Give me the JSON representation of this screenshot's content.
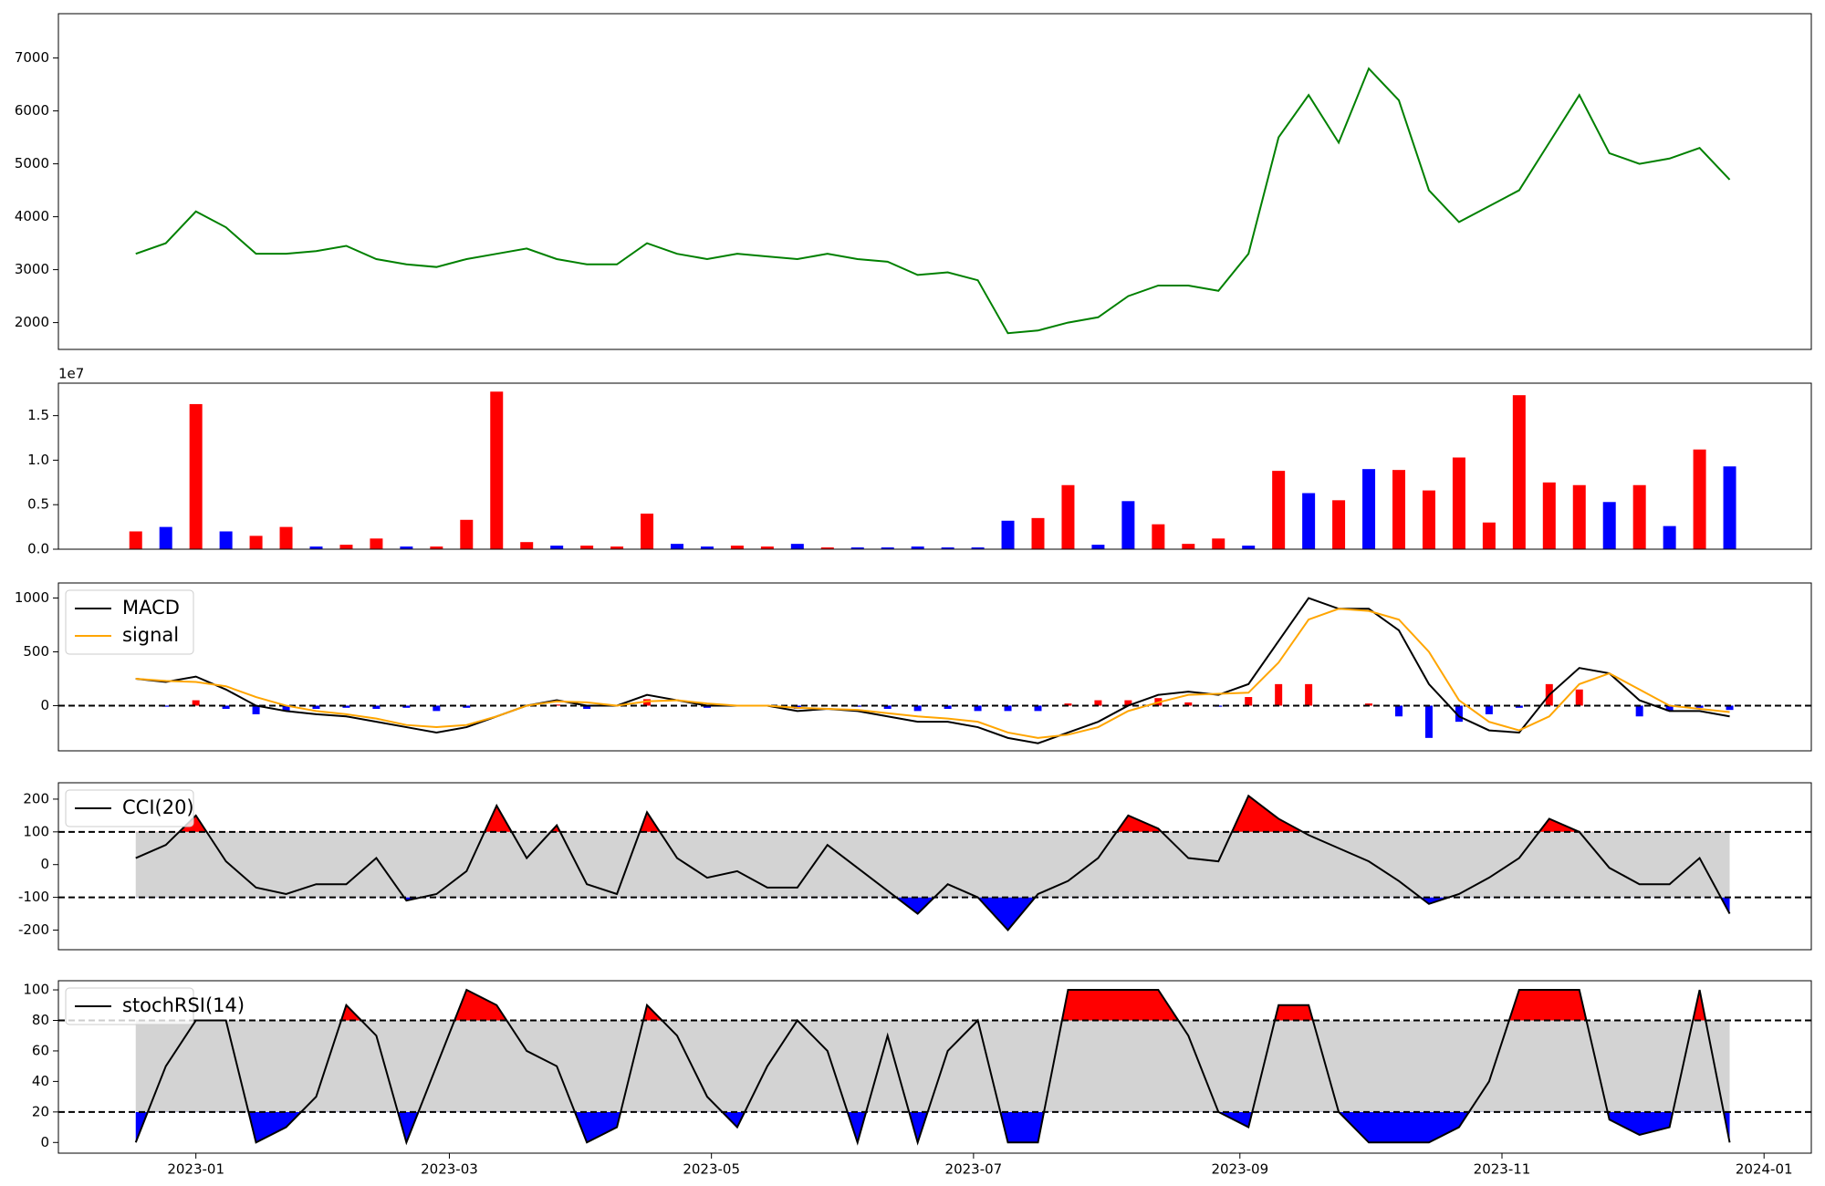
{
  "chart_data": [
    {
      "type": "line",
      "color": "green",
      "x": [
        19344,
        19351,
        19358,
        19365,
        19372,
        19379,
        19386,
        19393,
        19400,
        19407,
        19414,
        19421,
        19428,
        19435,
        19442,
        19449,
        19456,
        19463,
        19470,
        19477,
        19484,
        19491,
        19498,
        19505,
        19512,
        19519,
        19526,
        19533,
        19540,
        19547,
        19554,
        19561,
        19568,
        19575,
        19582,
        19589,
        19596,
        19603,
        19610,
        19617,
        19624,
        19631,
        19638,
        19645,
        19652,
        19659,
        19666,
        19673,
        19680,
        19687,
        19694,
        19701,
        19708,
        19715
      ],
      "values": [
        3300,
        3500,
        4100,
        3800,
        3300,
        3300,
        3350,
        3450,
        3200,
        3100,
        3050,
        3200,
        3300,
        3400,
        3200,
        3100,
        3100,
        3500,
        3300,
        3200,
        3300,
        3250,
        3200,
        3300,
        3200,
        3150,
        2900,
        2950,
        2800,
        1800,
        1850,
        2000,
        2100,
        2500,
        2700,
        2700,
        2600,
        3300,
        5500,
        6300,
        5400,
        6800,
        6200,
        4500,
        3900,
        4200,
        4500,
        5400,
        6300,
        5200,
        5000,
        5100,
        5300,
        4700
      ],
      "xlim": [
        19326,
        19734
      ],
      "ylim": [
        1493,
        7837
      ],
      "yticks": [
        2000,
        3000,
        4000,
        5000,
        6000,
        7000
      ]
    },
    {
      "type": "bar",
      "offset_label": "1e7",
      "x": [
        19344,
        19351,
        19358,
        19365,
        19372,
        19379,
        19386,
        19393,
        19400,
        19407,
        19414,
        19421,
        19428,
        19435,
        19442,
        19449,
        19456,
        19463,
        19470,
        19477,
        19484,
        19491,
        19498,
        19505,
        19512,
        19519,
        19526,
        19533,
        19540,
        19547,
        19554,
        19561,
        19568,
        19575,
        19582,
        19589,
        19596,
        19603,
        19610,
        19617,
        19624,
        19631,
        19638,
        19645,
        19652,
        19659,
        19666,
        19673,
        19680,
        19687,
        19694,
        19701,
        19708,
        19715
      ],
      "values": [
        2000000,
        2500000,
        16300000,
        2000000,
        1500000,
        2500000,
        300000,
        500000,
        1200000,
        300000,
        300000,
        3300000,
        17700000,
        800000,
        400000,
        400000,
        300000,
        4000000,
        600000,
        300000,
        400000,
        300000,
        600000,
        200000,
        200000,
        200000,
        300000,
        200000,
        200000,
        3200000,
        3500000,
        7200000,
        500000,
        5400000,
        2800000,
        600000,
        1200000,
        400000,
        8800000,
        6300000,
        5500000,
        9000000,
        8900000,
        6600000,
        10300000,
        3000000,
        17300000,
        7500000,
        7200000,
        5300000,
        7200000,
        2600000,
        11200000,
        9300000
      ],
      "colors": [
        "red",
        "blue",
        "red",
        "blue",
        "red",
        "red",
        "blue",
        "red",
        "red",
        "blue",
        "red",
        "red",
        "red",
        "red",
        "blue",
        "red",
        "red",
        "red",
        "blue",
        "blue",
        "red",
        "red",
        "blue",
        "red",
        "blue",
        "blue",
        "blue",
        "blue",
        "blue",
        "blue",
        "red",
        "red",
        "blue",
        "blue",
        "red",
        "red",
        "red",
        "blue",
        "red",
        "blue",
        "red",
        "blue",
        "red",
        "red",
        "red",
        "red",
        "red",
        "red",
        "red",
        "blue",
        "red",
        "blue",
        "red",
        "blue"
      ],
      "xlim": [
        19326,
        19734
      ],
      "ylim": [
        0,
        18650000
      ],
      "yticks": [
        {
          "value": 0,
          "label": "0.0"
        },
        {
          "value": 5000000,
          "label": "0.5"
        },
        {
          "value": 10000000,
          "label": "1.0"
        },
        {
          "value": 15000000,
          "label": "1.5"
        }
      ]
    },
    {
      "type": "macd",
      "legend": "upper left",
      "x": [
        19344,
        19351,
        19358,
        19365,
        19372,
        19379,
        19386,
        19393,
        19400,
        19407,
        19414,
        19421,
        19428,
        19435,
        19442,
        19449,
        19456,
        19463,
        19470,
        19477,
        19484,
        19491,
        19498,
        19505,
        19512,
        19519,
        19526,
        19533,
        19540,
        19547,
        19554,
        19561,
        19568,
        19575,
        19582,
        19589,
        19596,
        19603,
        19610,
        19617,
        19624,
        19631,
        19638,
        19645,
        19652,
        19659,
        19666,
        19673,
        19680,
        19687,
        19694,
        19701,
        19708,
        19715
      ],
      "series": [
        {
          "name": "MACD",
          "color": "black",
          "values": [
            250,
            220,
            270,
            150,
            0,
            -50,
            -80,
            -100,
            -150,
            -200,
            -250,
            -200,
            -100,
            0,
            50,
            0,
            0,
            100,
            50,
            0,
            0,
            0,
            -50,
            -30,
            -50,
            -100,
            -150,
            -150,
            -200,
            -300,
            -350,
            -250,
            -150,
            0,
            100,
            130,
            100,
            200,
            600,
            1000,
            900,
            900,
            700,
            200,
            -100,
            -230,
            -250,
            100,
            350,
            300,
            50,
            -50,
            -50,
            -100
          ]
        },
        {
          "name": "signal",
          "color": "orange",
          "values": [
            250,
            230,
            220,
            180,
            80,
            0,
            -50,
            -80,
            -120,
            -180,
            -200,
            -180,
            -100,
            0,
            40,
            30,
            0,
            40,
            50,
            20,
            0,
            0,
            -20,
            -30,
            -40,
            -70,
            -100,
            -120,
            -150,
            -250,
            -300,
            -270,
            -200,
            -50,
            30,
            100,
            110,
            120,
            400,
            800,
            900,
            880,
            800,
            500,
            50,
            -150,
            -230,
            -100,
            200,
            300,
            150,
            0,
            -30,
            -60
          ]
        }
      ],
      "histogram": {
        "up_color": "red",
        "down_color": "blue",
        "values": [
          0,
          -10,
          50,
          -30,
          -80,
          -50,
          -30,
          -20,
          -30,
          -20,
          -50,
          -20,
          0,
          0,
          10,
          -30,
          0,
          60,
          0,
          -20,
          0,
          0,
          -30,
          0,
          -10,
          -30,
          -50,
          -30,
          -50,
          -50,
          -50,
          20,
          50,
          50,
          70,
          30,
          -10,
          80,
          200,
          200,
          0,
          20,
          -100,
          -300,
          -150,
          -80,
          -20,
          200,
          150,
          0,
          -100,
          -50,
          -20,
          -40
        ]
      },
      "hlines": [
        0
      ],
      "xlim": [
        19326,
        19734
      ],
      "ylim": [
        -420,
        1140
      ],
      "yticks": [
        0,
        500,
        1000
      ]
    },
    {
      "type": "band",
      "legend": "upper left",
      "band_color": "lightgray",
      "above_color": "red",
      "below_color": "blue",
      "x": [
        19344,
        19351,
        19358,
        19365,
        19372,
        19379,
        19386,
        19393,
        19400,
        19407,
        19414,
        19421,
        19428,
        19435,
        19442,
        19449,
        19456,
        19463,
        19470,
        19477,
        19484,
        19491,
        19498,
        19505,
        19512,
        19519,
        19526,
        19533,
        19540,
        19547,
        19554,
        19561,
        19568,
        19575,
        19582,
        19589,
        19596,
        19603,
        19610,
        19617,
        19624,
        19631,
        19638,
        19645,
        19652,
        19659,
        19666,
        19673,
        19680,
        19687,
        19694,
        19701,
        19708,
        19715
      ],
      "series": [
        {
          "name": "CCI(20)",
          "color": "black",
          "values": [
            20,
            60,
            150,
            10,
            -70,
            -90,
            -60,
            -60,
            20,
            -110,
            -90,
            -20,
            180,
            20,
            120,
            -60,
            -90,
            160,
            20,
            -40,
            -20,
            -70,
            -70,
            60,
            -10,
            -80,
            -150,
            -60,
            -100,
            -200,
            -90,
            -50,
            20,
            150,
            110,
            20,
            10,
            210,
            140,
            90,
            50,
            10,
            -50,
            -120,
            -90,
            -40,
            20,
            140,
            100,
            -10,
            -60,
            -60,
            20,
            -150
          ]
        }
      ],
      "bands": [
        -100,
        100
      ],
      "xlim": [
        19326,
        19734
      ],
      "ylim": [
        -260,
        250
      ],
      "yticks": [
        -200,
        -100,
        0,
        100,
        200
      ]
    },
    {
      "type": "band",
      "legend": "upper left",
      "band_color": "lightgray",
      "above_color": "red",
      "below_color": "blue",
      "x": [
        19344,
        19351,
        19358,
        19365,
        19372,
        19379,
        19386,
        19393,
        19400,
        19407,
        19414,
        19421,
        19428,
        19435,
        19442,
        19449,
        19456,
        19463,
        19470,
        19477,
        19484,
        19491,
        19498,
        19505,
        19512,
        19519,
        19526,
        19533,
        19540,
        19547,
        19554,
        19561,
        19568,
        19575,
        19582,
        19589,
        19596,
        19603,
        19610,
        19617,
        19624,
        19631,
        19638,
        19645,
        19652,
        19659,
        19666,
        19673,
        19680,
        19687,
        19694,
        19701,
        19708,
        19715
      ],
      "series": [
        {
          "name": "stochRSI(14)",
          "color": "black",
          "values": [
            0,
            50,
            80,
            80,
            0,
            10,
            30,
            90,
            70,
            0,
            50,
            100,
            90,
            60,
            50,
            0,
            10,
            90,
            70,
            30,
            10,
            50,
            80,
            60,
            0,
            70,
            0,
            60,
            80,
            0,
            0,
            100,
            100,
            100,
            100,
            70,
            20,
            10,
            90,
            90,
            20,
            0,
            0,
            0,
            10,
            40,
            100,
            100,
            100,
            15,
            5,
            10,
            100,
            0
          ]
        }
      ],
      "bands": [
        20,
        80
      ],
      "xlim": [
        19326,
        19734
      ],
      "ylim": [
        -7,
        106
      ],
      "yticks": [
        0,
        20,
        40,
        60,
        80,
        100
      ],
      "xticks": [
        {
          "value": 19358,
          "label": "2023-01"
        },
        {
          "value": 19417,
          "label": "2023-03"
        },
        {
          "value": 19478,
          "label": "2023-05"
        },
        {
          "value": 19539,
          "label": "2023-07"
        },
        {
          "value": 19601,
          "label": "2023-09"
        },
        {
          "value": 19662,
          "label": "2023-11"
        },
        {
          "value": 19723,
          "label": "2024-01"
        }
      ]
    }
  ]
}
